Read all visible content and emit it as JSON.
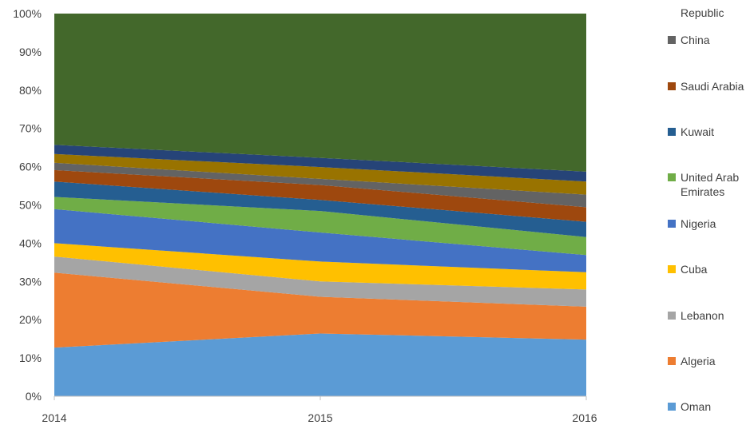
{
  "chart_data": {
    "type": "area",
    "stacked": true,
    "percent": true,
    "x": [
      "2014",
      "2015",
      "2016"
    ],
    "ylim": [
      0,
      100
    ],
    "y_ticks": [
      "0%",
      "10%",
      "20%",
      "30%",
      "40%",
      "50%",
      "60%",
      "70%",
      "80%",
      "90%",
      "100%"
    ],
    "legend_position": "right",
    "legend_top_partial_label": "Republic",
    "series": [
      {
        "name": "Oman",
        "color": "#5B9BD5",
        "values": [
          12.7,
          16.4,
          14.8
        ]
      },
      {
        "name": "Algeria",
        "color": "#ED7D31",
        "values": [
          19.6,
          9.6,
          8.6
        ]
      },
      {
        "name": "Lebanon",
        "color": "#A5A5A5",
        "values": [
          4.2,
          4.0,
          4.5
        ]
      },
      {
        "name": "Cuba",
        "color": "#FFC000",
        "values": [
          3.5,
          5.2,
          4.5
        ]
      },
      {
        "name": "Nigeria",
        "color": "#4472C4",
        "values": [
          8.9,
          7.6,
          4.5
        ]
      },
      {
        "name": "United Arab\nEmirates",
        "color": "#70AD47",
        "values": [
          3.2,
          5.6,
          4.7
        ]
      },
      {
        "name": "Kuwait",
        "color": "#255E91",
        "values": [
          4.0,
          2.9,
          4.0
        ]
      },
      {
        "name": "Saudi Arabia",
        "color": "#9E480E",
        "values": [
          3.0,
          3.9,
          3.8
        ]
      },
      {
        "name": "China",
        "color": "#636363",
        "values": [
          1.9,
          1.6,
          3.3
        ]
      },
      {
        "name": "Republic",
        "color": "#997300",
        "values": [
          2.3,
          3.1,
          3.4
        ]
      },
      {
        "name": "",
        "color": "#264478",
        "values": [
          2.4,
          2.4,
          2.6
        ]
      },
      {
        "name": "",
        "color": "#43682B",
        "values": [
          34.3,
          37.7,
          41.3
        ]
      }
    ]
  }
}
